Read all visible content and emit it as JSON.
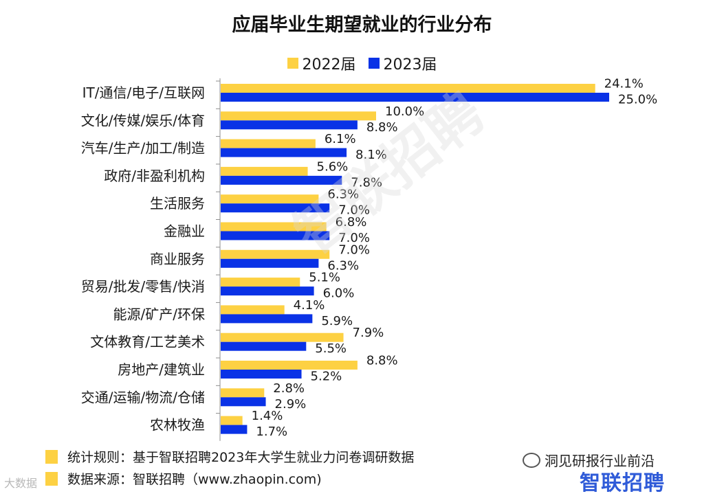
{
  "chart_data": {
    "type": "bar",
    "orientation": "horizontal",
    "title": "应届毕业生期望就业的行业分布",
    "categories": [
      "IT/通信/电子/互联网",
      "文化/传媒/娱乐/体育",
      "汽车/生产/加工/制造",
      "政府/非盈利机构",
      "生活服务",
      "金融业",
      "商业服务",
      "贸易/批发/零售/快消",
      "能源/矿产/环保",
      "文体教育/工艺美术",
      "房地产/建筑业",
      "交通/运输/物流/仓储",
      "农林牧渔"
    ],
    "series": [
      {
        "name": "2022届",
        "color": "#fdd143",
        "values": [
          24.1,
          10.0,
          6.1,
          5.6,
          6.3,
          6.8,
          7.0,
          5.1,
          4.1,
          7.9,
          8.8,
          2.8,
          1.4
        ],
        "labels": [
          "24.1%",
          "10.0%",
          "6.1%",
          "5.6%",
          "6.3%",
          "6.8%",
          "7.0%",
          "5.1%",
          "4.1%",
          "7.9%",
          "8.8%",
          "2.8%",
          "1.4%"
        ]
      },
      {
        "name": "2023届",
        "color": "#0a32e6",
        "values": [
          25.0,
          8.8,
          8.1,
          7.8,
          7.0,
          7.0,
          6.3,
          6.0,
          5.9,
          5.5,
          5.2,
          2.9,
          1.7
        ],
        "labels": [
          "25.0%",
          "8.8%",
          "8.1%",
          "7.8%",
          "7.0%",
          "7.0%",
          "6.3%",
          "6.0%",
          "5.9%",
          "5.5%",
          "5.2%",
          "2.9%",
          "1.7%"
        ]
      }
    ],
    "xlim": [
      0,
      25
    ],
    "grid": false,
    "legend": "top-center"
  },
  "footnotes": {
    "rule": "统计规则：基于智联招聘2023年大学生就业力问卷调研数据",
    "source": "数据来源：智联招聘（www.zhaopin.com)",
    "swatch_color": "#fdd143"
  },
  "overlays": {
    "watermark": "智联招聘",
    "wechat_account": "洞见研报行业前沿",
    "brand_logo": "智联招聘",
    "corner_mark": "大数据"
  }
}
